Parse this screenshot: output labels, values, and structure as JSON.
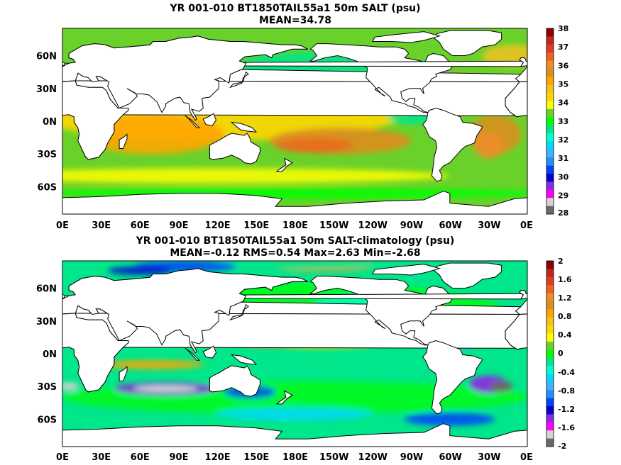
{
  "chart_data": [
    {
      "type": "heatmap",
      "title": "YR 001-010 BT1850TAIL55a1 50m SALT (psu)",
      "subtitle": "MEAN=34.78",
      "x_ticks": [
        "0E",
        "30E",
        "60E",
        "90E",
        "120E",
        "150E",
        "180E",
        "150W",
        "120W",
        "90W",
        "60W",
        "30W",
        "0E"
      ],
      "y_ticks": [
        "60N",
        "30N",
        "0N",
        "30S",
        "60S"
      ],
      "y_tick_lat": [
        60,
        30,
        0,
        -30,
        -60
      ],
      "lat_range": [
        -85,
        85
      ],
      "lon_range": [
        0,
        360
      ],
      "colorbar": {
        "ticks": [
          "38",
          "37",
          "36",
          "35",
          "34",
          "33",
          "32",
          "31",
          "30",
          "29",
          "28"
        ],
        "colors": [
          "#8b0000",
          "#c0261b",
          "#dd3d22",
          "#f06020",
          "#f28c28",
          "#d9901e",
          "#ffa500",
          "#f2c21d",
          "#ffd700",
          "#ffff00",
          "#6ad12a",
          "#00ff00",
          "#00e68a",
          "#00ffcc",
          "#00d8ff",
          "#42b0ff",
          "#1e90ff",
          "#0040ff",
          "#0000cd",
          "#8a2be2",
          "#ff00ff",
          "#d3d3d3",
          "#696969"
        ]
      }
    },
    {
      "type": "heatmap",
      "title": "YR 001-010 BT1850TAIL55a1 50m SALT-climatology (psu)",
      "subtitle": "MEAN=-0.12   RMS=0.54   Max=2.63   Min=-2.68",
      "x_ticks": [
        "0E",
        "30E",
        "60E",
        "90E",
        "120E",
        "150E",
        "180E",
        "150W",
        "120W",
        "90W",
        "60W",
        "30W",
        "0E"
      ],
      "y_ticks": [
        "60N",
        "30N",
        "0N",
        "30S",
        "60S"
      ],
      "y_tick_lat": [
        60,
        30,
        0,
        -30,
        -60
      ],
      "lat_range": [
        -85,
        85
      ],
      "lon_range": [
        0,
        360
      ],
      "colorbar": {
        "ticks": [
          "2",
          "1.6",
          "1.2",
          "0.8",
          "0.4",
          "0",
          "-0.4",
          "-0.8",
          "-1.2",
          "-1.6",
          "-2"
        ],
        "colors": [
          "#8b0000",
          "#c0261b",
          "#dd3d22",
          "#f06020",
          "#f28c28",
          "#d9901e",
          "#ffa500",
          "#f2c21d",
          "#ffd700",
          "#ffff00",
          "#6ad12a",
          "#00ff00",
          "#00e68a",
          "#00ffcc",
          "#00d8ff",
          "#42b0ff",
          "#1e90ff",
          "#0040ff",
          "#0000cd",
          "#8a2be2",
          "#ff00ff",
          "#d3d3d3",
          "#696969"
        ]
      }
    }
  ],
  "colors": {
    "land": "#ffffff",
    "coast": "#000000"
  }
}
